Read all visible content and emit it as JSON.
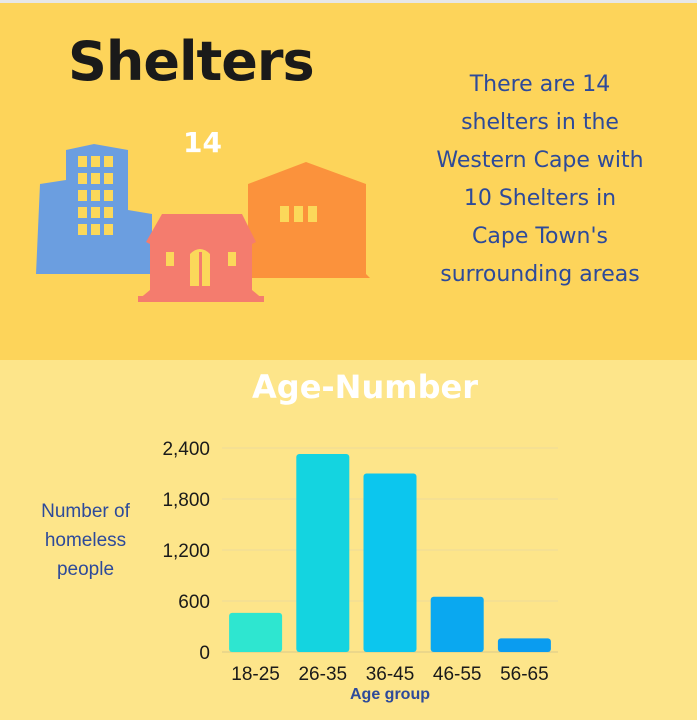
{
  "header": {
    "title": "Shelters",
    "count": "14",
    "description_lines": [
      "There are 14",
      "shelters in the",
      "Western Cape with",
      "10 Shelters in",
      "Cape Town's",
      "surrounding areas"
    ]
  },
  "colors": {
    "top_background": "#fdd45a",
    "bottom_background": "#fde58a",
    "text_blue": "#2d4a9a",
    "building_blue": "#6b9ee0",
    "building_orange": "#fb923c",
    "building_salmon": "#f47c6e",
    "window_yellow": "#fbd85a"
  },
  "chart_data": {
    "type": "bar",
    "title": "Age-Number",
    "xlabel": "Age group",
    "ylabel_lines": [
      "Number of",
      "homeless",
      "people"
    ],
    "categories": [
      "18-25",
      "26-35",
      "36-45",
      "46-55",
      "56-65"
    ],
    "values": [
      460,
      2330,
      2100,
      650,
      160
    ],
    "colors": [
      "#2ee6d0",
      "#14d4e0",
      "#0cc6ee",
      "#0aa8f0",
      "#0a9cf0"
    ],
    "yticks": [
      0,
      600,
      1200,
      1800,
      2400
    ],
    "ytick_labels": [
      "0",
      "600",
      "1,200",
      "1,800",
      "2,400"
    ],
    "ylim": [
      0,
      2400
    ],
    "grid": true
  }
}
